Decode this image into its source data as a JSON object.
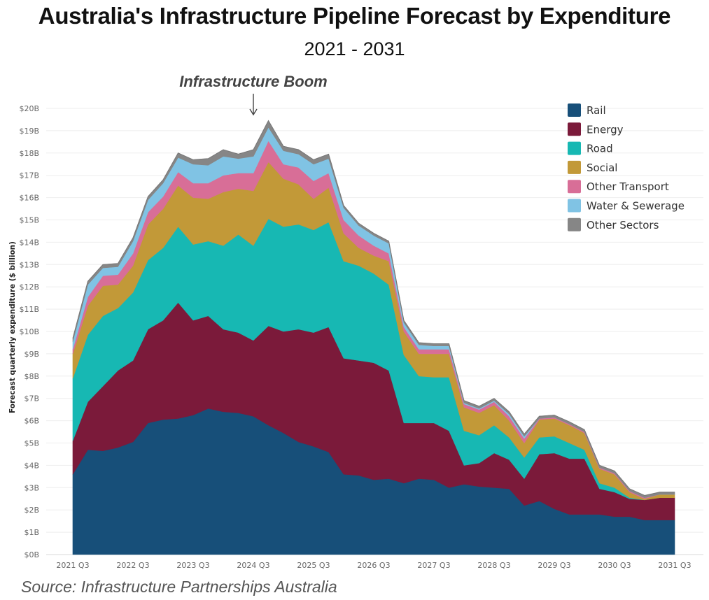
{
  "title": "Australia's Infrastructure Pipeline Forecast by Expenditure",
  "subtitle": "2021 - 2031",
  "source": "Source: Infrastructure Partnerships Australia",
  "chart_data": {
    "type": "area",
    "stacked": true,
    "ylabel": "Forecast quarterly expenditure ($ billion)",
    "ylim": [
      0,
      20
    ],
    "yticks": [
      "$0B",
      "$1B",
      "$2B",
      "$3B",
      "$4B",
      "$5B",
      "$6B",
      "$7B",
      "$8B",
      "$9B",
      "$10B",
      "$11B",
      "$12B",
      "$13B",
      "$14B",
      "$15B",
      "$16B",
      "$17B",
      "$18B",
      "$19B",
      "$20B"
    ],
    "x_tick_labels": [
      "2021 Q3",
      "2022 Q3",
      "2023 Q3",
      "2024 Q3",
      "2025 Q3",
      "2026 Q3",
      "2027 Q3",
      "2028 Q3",
      "2029 Q3",
      "2030 Q3",
      "2031 Q3"
    ],
    "x": [
      "2021 Q3",
      "2021 Q4",
      "2022 Q1",
      "2022 Q2",
      "2022 Q3",
      "2022 Q4",
      "2023 Q1",
      "2023 Q2",
      "2023 Q3",
      "2023 Q4",
      "2024 Q1",
      "2024 Q2",
      "2024 Q3",
      "2024 Q4",
      "2025 Q1",
      "2025 Q2",
      "2025 Q3",
      "2025 Q4",
      "2026 Q1",
      "2026 Q2",
      "2026 Q3",
      "2026 Q4",
      "2027 Q1",
      "2027 Q2",
      "2027 Q3",
      "2027 Q4",
      "2028 Q1",
      "2028 Q2",
      "2028 Q3",
      "2028 Q4",
      "2029 Q1",
      "2029 Q2",
      "2029 Q3",
      "2029 Q4",
      "2030 Q1",
      "2030 Q2",
      "2030 Q3",
      "2030 Q4",
      "2031 Q1",
      "2031 Q2",
      "2031 Q3"
    ],
    "legend_position": "top-right",
    "grid": true,
    "annotation": {
      "text": "Infrastructure Boom",
      "x": "2024 Q3"
    },
    "series": [
      {
        "name": "Rail",
        "color": "#174F79",
        "values": [
          3.6,
          4.7,
          4.65,
          4.8,
          5.05,
          5.9,
          6.05,
          6.1,
          6.25,
          6.55,
          6.4,
          6.35,
          6.2,
          5.8,
          5.45,
          5.05,
          4.85,
          4.6,
          3.6,
          3.55,
          3.35,
          3.4,
          3.2,
          3.4,
          3.35,
          3.0,
          3.15,
          3.05,
          3.0,
          2.95,
          2.2,
          2.4,
          2.05,
          1.8,
          1.8,
          1.8,
          1.7,
          1.7,
          1.55,
          1.55,
          1.55
        ]
      },
      {
        "name": "Energy",
        "color": "#7B1A3A",
        "values": [
          1.5,
          2.15,
          2.9,
          3.45,
          3.65,
          4.2,
          4.45,
          5.2,
          4.25,
          4.15,
          3.7,
          3.6,
          3.4,
          4.45,
          4.55,
          5.05,
          5.1,
          5.6,
          5.2,
          5.15,
          5.25,
          4.85,
          2.7,
          2.5,
          2.55,
          2.55,
          0.85,
          1.05,
          1.55,
          1.3,
          1.2,
          2.1,
          2.5,
          2.5,
          2.5,
          1.15,
          1.1,
          0.8,
          0.9,
          1.0,
          1.0
        ]
      },
      {
        "name": "Road",
        "color": "#17B8B3",
        "values": [
          2.8,
          3.0,
          3.15,
          2.8,
          3.05,
          3.1,
          3.25,
          3.4,
          3.4,
          3.35,
          3.75,
          4.4,
          4.25,
          4.8,
          4.7,
          4.7,
          4.6,
          4.7,
          4.35,
          4.25,
          4.0,
          3.85,
          3.05,
          2.1,
          2.05,
          2.4,
          1.55,
          1.25,
          1.25,
          1.0,
          0.95,
          0.75,
          0.75,
          0.7,
          0.4,
          0.25,
          0.2,
          0.05,
          0.0,
          0.0,
          0.0
        ]
      },
      {
        "name": "Social",
        "color": "#C29938",
        "values": [
          1.1,
          1.3,
          1.35,
          1.05,
          1.2,
          1.6,
          1.75,
          1.85,
          2.1,
          1.9,
          2.4,
          2.05,
          2.45,
          2.55,
          2.15,
          1.8,
          1.4,
          1.55,
          1.25,
          0.8,
          0.8,
          1.05,
          1.05,
          1.0,
          1.05,
          1.05,
          1.05,
          1.0,
          0.9,
          0.75,
          0.65,
          0.8,
          0.8,
          0.8,
          0.75,
          0.65,
          0.6,
          0.25,
          0.05,
          0.15,
          0.15
        ]
      },
      {
        "name": "Other Transport",
        "color": "#D86E97",
        "values": [
          0.2,
          0.4,
          0.45,
          0.45,
          0.55,
          0.55,
          0.55,
          0.6,
          0.65,
          0.7,
          0.75,
          0.7,
          0.8,
          0.95,
          0.65,
          0.75,
          0.8,
          0.65,
          0.6,
          0.55,
          0.45,
          0.35,
          0.2,
          0.2,
          0.2,
          0.2,
          0.15,
          0.15,
          0.15,
          0.2,
          0.2,
          0.05,
          0.05,
          0.05,
          0.05,
          0.05,
          0.05,
          0.05,
          0.05,
          0.0,
          0.0
        ]
      },
      {
        "name": "Water & Sewerage",
        "color": "#80C3E4",
        "values": [
          0.35,
          0.55,
          0.35,
          0.35,
          0.55,
          0.55,
          0.6,
          0.65,
          0.85,
          0.8,
          0.85,
          0.65,
          0.75,
          0.6,
          0.6,
          0.6,
          0.75,
          0.65,
          0.55,
          0.45,
          0.45,
          0.45,
          0.2,
          0.2,
          0.15,
          0.15,
          0.05,
          0.05,
          0.05,
          0.1,
          0.1,
          0.0,
          0.0,
          0.0,
          0.0,
          0.0,
          0.0,
          0.0,
          0.0,
          0.0,
          0.0
        ]
      },
      {
        "name": "Other Sectors",
        "color": "#868686",
        "values": [
          0.15,
          0.15,
          0.15,
          0.15,
          0.15,
          0.15,
          0.15,
          0.2,
          0.2,
          0.3,
          0.3,
          0.2,
          0.3,
          0.3,
          0.2,
          0.2,
          0.2,
          0.2,
          0.1,
          0.1,
          0.1,
          0.1,
          0.1,
          0.1,
          0.1,
          0.1,
          0.1,
          0.1,
          0.1,
          0.1,
          0.1,
          0.1,
          0.1,
          0.1,
          0.1,
          0.1,
          0.1,
          0.1,
          0.1,
          0.1,
          0.1
        ]
      }
    ]
  }
}
